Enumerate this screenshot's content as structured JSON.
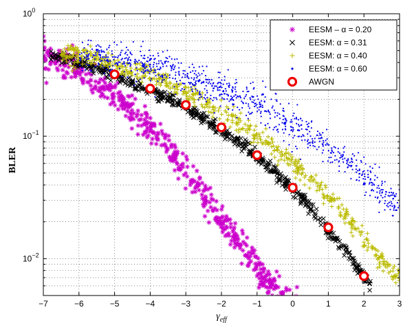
{
  "chart_data": {
    "type": "scatter",
    "title": "",
    "xlabel": "γ",
    "xlabel_sub": "eff",
    "ylabel": "BLER",
    "xlim": [
      -7,
      3
    ],
    "ylim": [
      0.005,
      1
    ],
    "yscale": "log",
    "grid": true,
    "grid_style": "dotted",
    "legend_position": "top-right",
    "x_ticks": [
      "-7",
      "-6",
      "-5",
      "-4",
      "-3",
      "-2",
      "-1",
      "0",
      "1",
      "2",
      "3"
    ],
    "y_ticks": [
      {
        "value": 1,
        "base": "10",
        "exp": "0"
      },
      {
        "value": 0.1,
        "base": "10",
        "exp": "-1"
      },
      {
        "value": 0.01,
        "base": "10",
        "exp": "-2"
      }
    ],
    "series": [
      {
        "name": "EESM – α = 0.20",
        "marker": "asterisk",
        "color": "#cc00cc",
        "curve_x": [
          -7.0,
          -6.5,
          -6.0,
          -5.5,
          -5.0,
          -4.5,
          -4.0,
          -3.5,
          -3.0,
          -2.5,
          -2.0,
          -1.5,
          -1.0,
          -0.5,
          0.0,
          0.5
        ],
        "curve_y": [
          0.45,
          0.4,
          0.34,
          0.27,
          0.21,
          0.16,
          0.115,
          0.08,
          0.053,
          0.034,
          0.021,
          0.0135,
          0.0085,
          0.0055,
          0.0042,
          0.0032
        ],
        "x_range": [
          -7.0,
          0.7
        ],
        "spread_decades": 0.06
      },
      {
        "name": "EESM:  α = 0.31",
        "marker": "x",
        "color": "#000000",
        "curve_x": [
          -6.8,
          -6.5,
          -6.0,
          -5.5,
          -5.0,
          -4.5,
          -4.0,
          -3.5,
          -3.0,
          -2.5,
          -2.0,
          -1.5,
          -1.0,
          -0.5,
          0.0,
          0.5,
          1.0,
          1.5,
          2.0,
          2.5
        ],
        "curve_y": [
          0.47,
          0.44,
          0.4,
          0.36,
          0.31,
          0.27,
          0.23,
          0.2,
          0.17,
          0.14,
          0.11,
          0.088,
          0.069,
          0.051,
          0.037,
          0.026,
          0.017,
          0.0115,
          0.0072,
          0.0046
        ],
        "x_range": [
          -6.8,
          2.2
        ],
        "spread_decades": 0.025
      },
      {
        "name": "EESM:  α = 0.40",
        "marker": "plus",
        "color": "#bbbb00",
        "curve_x": [
          -6.5,
          -6.0,
          -5.5,
          -5.0,
          -4.5,
          -4.0,
          -3.5,
          -3.0,
          -2.5,
          -2.0,
          -1.5,
          -1.0,
          -0.5,
          0.0,
          0.5,
          1.0,
          1.5,
          2.0,
          2.5,
          3.0
        ],
        "curve_y": [
          0.47,
          0.46,
          0.43,
          0.39,
          0.35,
          0.31,
          0.27,
          0.23,
          0.19,
          0.16,
          0.13,
          0.1,
          0.08,
          0.061,
          0.045,
          0.032,
          0.022,
          0.014,
          0.0095,
          0.0065
        ],
        "x_range": [
          -6.5,
          3.0
        ],
        "spread_decades": 0.04
      },
      {
        "name": "EESM:  α = 0.60",
        "marker": "dot",
        "color": "#0000ee",
        "curve_x": [
          -6.5,
          -6.0,
          -5.5,
          -5.0,
          -4.5,
          -4.0,
          -3.5,
          -3.0,
          -2.5,
          -2.0,
          -1.5,
          -1.0,
          -0.5,
          0.0,
          0.5,
          1.0,
          1.5,
          2.0,
          2.5,
          3.0
        ],
        "curve_y": [
          0.48,
          0.47,
          0.45,
          0.43,
          0.4,
          0.37,
          0.34,
          0.3,
          0.27,
          0.24,
          0.21,
          0.18,
          0.15,
          0.12,
          0.1,
          0.082,
          0.064,
          0.048,
          0.035,
          0.026
        ],
        "x_range": [
          -6.0,
          3.0
        ],
        "spread_decades": 0.07
      },
      {
        "name": "AWGN",
        "marker": "circle",
        "color": "#ee0000",
        "x": [
          -5,
          -4,
          -3,
          -2,
          -1,
          0,
          1,
          2
        ],
        "y": [
          0.32,
          0.245,
          0.18,
          0.118,
          0.07,
          0.038,
          0.018,
          0.0072
        ]
      }
    ]
  }
}
